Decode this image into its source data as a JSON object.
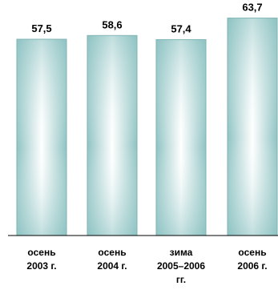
{
  "chart_data": {
    "type": "bar",
    "categories": [
      "осень\n2003 г.",
      "осень\n2004 г.",
      "зима\n2005–2006\nгг.",
      "осень\n2006 г."
    ],
    "values": [
      57.5,
      58.6,
      57.4,
      63.7
    ],
    "value_labels": [
      "57,5",
      "58,6",
      "57,4",
      "63,7"
    ],
    "title": "",
    "xlabel": "",
    "ylabel": "",
    "ylim": [
      0,
      69
    ],
    "grid": false,
    "legend": "none"
  },
  "colors": {
    "bar_edge": "#7fb3b3",
    "bar_fill": "#a9d3d3",
    "bar_highlight": "#ffffff",
    "axis": "#000000",
    "text": "#000000"
  }
}
